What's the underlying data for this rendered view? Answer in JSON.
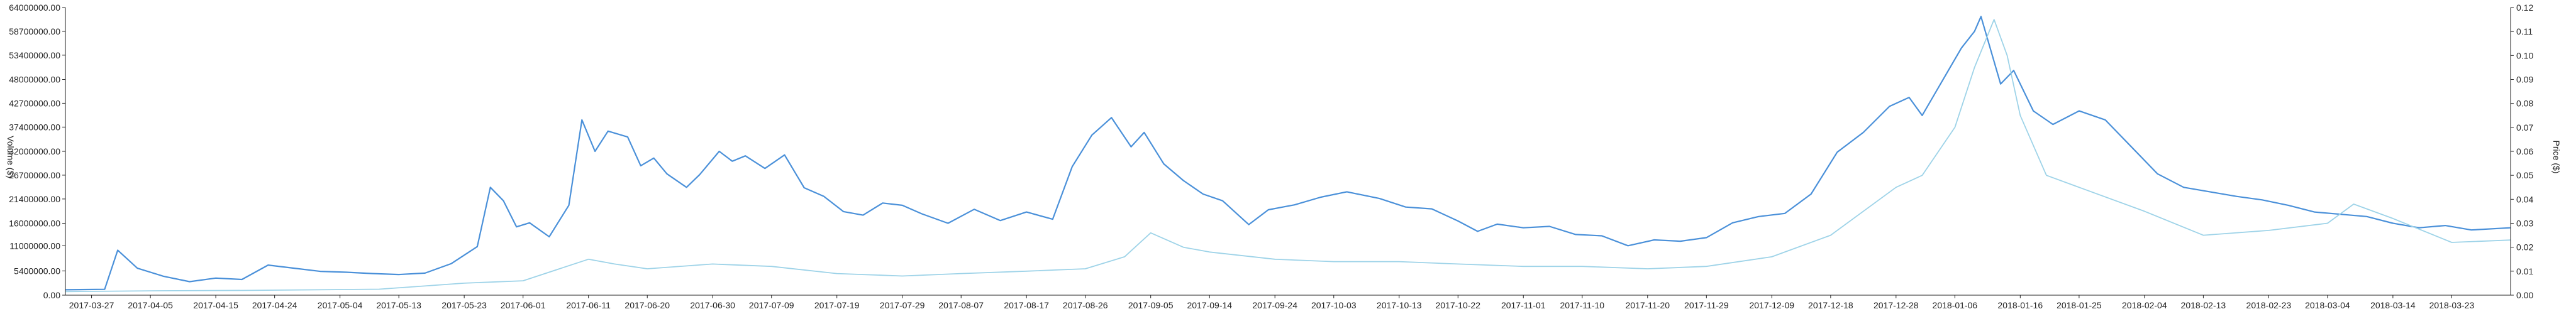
{
  "chart_data": {
    "type": "line",
    "title": "",
    "xlabel": "",
    "ylabel_left": "Volume ($)",
    "ylabel_right": "Price ($)",
    "x_ticks": [
      "2017-03-27",
      "2017-04-05",
      "2017-04-15",
      "2017-04-24",
      "2017-05-04",
      "2017-05-13",
      "2017-05-23",
      "2017-06-01",
      "2017-06-11",
      "2017-06-20",
      "2017-06-30",
      "2017-07-09",
      "2017-07-19",
      "2017-07-29",
      "2017-08-07",
      "2017-08-17",
      "2017-08-26",
      "2017-09-05",
      "2017-09-14",
      "2017-09-24",
      "2017-10-03",
      "2017-10-13",
      "2017-10-22",
      "2017-11-01",
      "2017-11-10",
      "2017-11-20",
      "2017-11-29",
      "2017-12-09",
      "2017-12-18",
      "2017-12-28",
      "2018-01-06",
      "2018-01-16",
      "2018-01-25",
      "2018-02-04",
      "2018-02-13",
      "2018-02-23",
      "2018-03-04",
      "2018-03-14",
      "2018-03-23"
    ],
    "xlim": [
      "2017-03-23",
      "2018-04-01"
    ],
    "y_left_ticks": [
      "0.00",
      "5400000.00",
      "11000000.00",
      "16000000.00",
      "21400000.00",
      "26700000.00",
      "32000000.00",
      "37400000.00",
      "42700000.00",
      "48000000.00",
      "53400000.00",
      "58700000.00",
      "64000000.00"
    ],
    "y_left_lim": [
      0,
      64000000
    ],
    "y_right_ticks": [
      "0.00",
      "0.01",
      "0.02",
      "0.03",
      "0.04",
      "0.05",
      "0.06",
      "0.07",
      "0.08",
      "0.09",
      "0.10",
      "0.11",
      "0.12"
    ],
    "y_right_lim": [
      0,
      0.12
    ],
    "colors": {
      "volume": "#4a90d9",
      "price": "#9ed3e8",
      "axis": "#222222"
    },
    "series": [
      {
        "key": "volume",
        "axis": "left",
        "points": [
          [
            "2017-03-23",
            1200000
          ],
          [
            "2017-03-29",
            1300000
          ],
          [
            "2017-03-31",
            10000000
          ],
          [
            "2017-04-03",
            6000000
          ],
          [
            "2017-04-07",
            4200000
          ],
          [
            "2017-04-11",
            3000000
          ],
          [
            "2017-04-15",
            3800000
          ],
          [
            "2017-04-19",
            3500000
          ],
          [
            "2017-04-23",
            6700000
          ],
          [
            "2017-04-27",
            6000000
          ],
          [
            "2017-05-01",
            5300000
          ],
          [
            "2017-05-05",
            5100000
          ],
          [
            "2017-05-09",
            4800000
          ],
          [
            "2017-05-13",
            4600000
          ],
          [
            "2017-05-17",
            4900000
          ],
          [
            "2017-05-21",
            7000000
          ],
          [
            "2017-05-25",
            10800000
          ],
          [
            "2017-05-27",
            24000000
          ],
          [
            "2017-05-29",
            21000000
          ],
          [
            "2017-05-31",
            15200000
          ],
          [
            "2017-06-02",
            16100000
          ],
          [
            "2017-06-05",
            13000000
          ],
          [
            "2017-06-08",
            20000000
          ],
          [
            "2017-06-10",
            39000000
          ],
          [
            "2017-06-12",
            32000000
          ],
          [
            "2017-06-14",
            36500000
          ],
          [
            "2017-06-17",
            35200000
          ],
          [
            "2017-06-19",
            28800000
          ],
          [
            "2017-06-21",
            30500000
          ],
          [
            "2017-06-23",
            27000000
          ],
          [
            "2017-06-26",
            24000000
          ],
          [
            "2017-06-28",
            26800000
          ],
          [
            "2017-07-01",
            32000000
          ],
          [
            "2017-07-03",
            29800000
          ],
          [
            "2017-07-05",
            31000000
          ],
          [
            "2017-07-08",
            28200000
          ],
          [
            "2017-07-11",
            31200000
          ],
          [
            "2017-07-14",
            23900000
          ],
          [
            "2017-07-17",
            22000000
          ],
          [
            "2017-07-20",
            18600000
          ],
          [
            "2017-07-23",
            17800000
          ],
          [
            "2017-07-26",
            20500000
          ],
          [
            "2017-07-29",
            20000000
          ],
          [
            "2017-08-01",
            18100000
          ],
          [
            "2017-08-05",
            16000000
          ],
          [
            "2017-08-09",
            19100000
          ],
          [
            "2017-08-13",
            16600000
          ],
          [
            "2017-08-17",
            18500000
          ],
          [
            "2017-08-21",
            16900000
          ],
          [
            "2017-08-24",
            28600000
          ],
          [
            "2017-08-27",
            35600000
          ],
          [
            "2017-08-30",
            39500000
          ],
          [
            "2017-09-02",
            33000000
          ],
          [
            "2017-09-04",
            36200000
          ],
          [
            "2017-09-07",
            29200000
          ],
          [
            "2017-09-10",
            25500000
          ],
          [
            "2017-09-13",
            22500000
          ],
          [
            "2017-09-16",
            21000000
          ],
          [
            "2017-09-20",
            15700000
          ],
          [
            "2017-09-23",
            19000000
          ],
          [
            "2017-09-27",
            20100000
          ],
          [
            "2017-10-01",
            21800000
          ],
          [
            "2017-10-05",
            23000000
          ],
          [
            "2017-10-10",
            21500000
          ],
          [
            "2017-10-14",
            19600000
          ],
          [
            "2017-10-18",
            19200000
          ],
          [
            "2017-10-22",
            16500000
          ],
          [
            "2017-10-25",
            14200000
          ],
          [
            "2017-10-28",
            15800000
          ],
          [
            "2017-11-01",
            15000000
          ],
          [
            "2017-11-05",
            15300000
          ],
          [
            "2017-11-09",
            13500000
          ],
          [
            "2017-11-13",
            13200000
          ],
          [
            "2017-11-17",
            11000000
          ],
          [
            "2017-11-21",
            12300000
          ],
          [
            "2017-11-25",
            12000000
          ],
          [
            "2017-11-29",
            12800000
          ],
          [
            "2017-12-03",
            16100000
          ],
          [
            "2017-12-07",
            17500000
          ],
          [
            "2017-12-11",
            18200000
          ],
          [
            "2017-12-15",
            22500000
          ],
          [
            "2017-12-19",
            31800000
          ],
          [
            "2017-12-23",
            36200000
          ],
          [
            "2017-12-27",
            42000000
          ],
          [
            "2017-12-30",
            44000000
          ],
          [
            "2018-01-01",
            40000000
          ],
          [
            "2018-01-03",
            45000000
          ],
          [
            "2018-01-05",
            50000000
          ],
          [
            "2018-01-07",
            55000000
          ],
          [
            "2018-01-09",
            58700000
          ],
          [
            "2018-01-10",
            62000000
          ],
          [
            "2018-01-12",
            52000000
          ],
          [
            "2018-01-13",
            47000000
          ],
          [
            "2018-01-15",
            50000000
          ],
          [
            "2018-01-18",
            41000000
          ],
          [
            "2018-01-21",
            38000000
          ],
          [
            "2018-01-25",
            41000000
          ],
          [
            "2018-01-29",
            39000000
          ],
          [
            "2018-02-02",
            33000000
          ],
          [
            "2018-02-06",
            27000000
          ],
          [
            "2018-02-10",
            24000000
          ],
          [
            "2018-02-14",
            23000000
          ],
          [
            "2018-02-18",
            22000000
          ],
          [
            "2018-02-22",
            21200000
          ],
          [
            "2018-02-26",
            20000000
          ],
          [
            "2018-03-02",
            18500000
          ],
          [
            "2018-03-06",
            18000000
          ],
          [
            "2018-03-10",
            17500000
          ],
          [
            "2018-03-14",
            16000000
          ],
          [
            "2018-03-18",
            15000000
          ],
          [
            "2018-03-22",
            15500000
          ],
          [
            "2018-03-26",
            14500000
          ],
          [
            "2018-04-01",
            15000000
          ]
        ]
      },
      {
        "key": "price",
        "axis": "right",
        "points": [
          [
            "2017-03-23",
            0.0015
          ],
          [
            "2017-04-05",
            0.0018
          ],
          [
            "2017-04-20",
            0.002
          ],
          [
            "2017-05-10",
            0.0025
          ],
          [
            "2017-05-23",
            0.005
          ],
          [
            "2017-06-01",
            0.006
          ],
          [
            "2017-06-11",
            0.015
          ],
          [
            "2017-06-15",
            0.013
          ],
          [
            "2017-06-20",
            0.011
          ],
          [
            "2017-06-30",
            0.013
          ],
          [
            "2017-07-09",
            0.012
          ],
          [
            "2017-07-19",
            0.009
          ],
          [
            "2017-07-29",
            0.008
          ],
          [
            "2017-08-07",
            0.009
          ],
          [
            "2017-08-17",
            0.01
          ],
          [
            "2017-08-26",
            0.011
          ],
          [
            "2017-09-01",
            0.016
          ],
          [
            "2017-09-05",
            0.026
          ],
          [
            "2017-09-10",
            0.02
          ],
          [
            "2017-09-14",
            0.018
          ],
          [
            "2017-09-24",
            0.015
          ],
          [
            "2017-10-03",
            0.014
          ],
          [
            "2017-10-13",
            0.014
          ],
          [
            "2017-10-22",
            0.013
          ],
          [
            "2017-11-01",
            0.012
          ],
          [
            "2017-11-10",
            0.012
          ],
          [
            "2017-11-20",
            0.011
          ],
          [
            "2017-11-29",
            0.012
          ],
          [
            "2017-12-09",
            0.016
          ],
          [
            "2017-12-18",
            0.025
          ],
          [
            "2017-12-28",
            0.045
          ],
          [
            "2018-01-01",
            0.05
          ],
          [
            "2018-01-06",
            0.07
          ],
          [
            "2018-01-09",
            0.095
          ],
          [
            "2018-01-12",
            0.115
          ],
          [
            "2018-01-14",
            0.1
          ],
          [
            "2018-01-16",
            0.075
          ],
          [
            "2018-01-20",
            0.05
          ],
          [
            "2018-01-25",
            0.045
          ],
          [
            "2018-02-04",
            0.035
          ],
          [
            "2018-02-13",
            0.025
          ],
          [
            "2018-02-23",
            0.027
          ],
          [
            "2018-03-04",
            0.03
          ],
          [
            "2018-03-08",
            0.038
          ],
          [
            "2018-03-14",
            0.032
          ],
          [
            "2018-03-23",
            0.022
          ],
          [
            "2018-04-01",
            0.023
          ]
        ]
      }
    ]
  }
}
